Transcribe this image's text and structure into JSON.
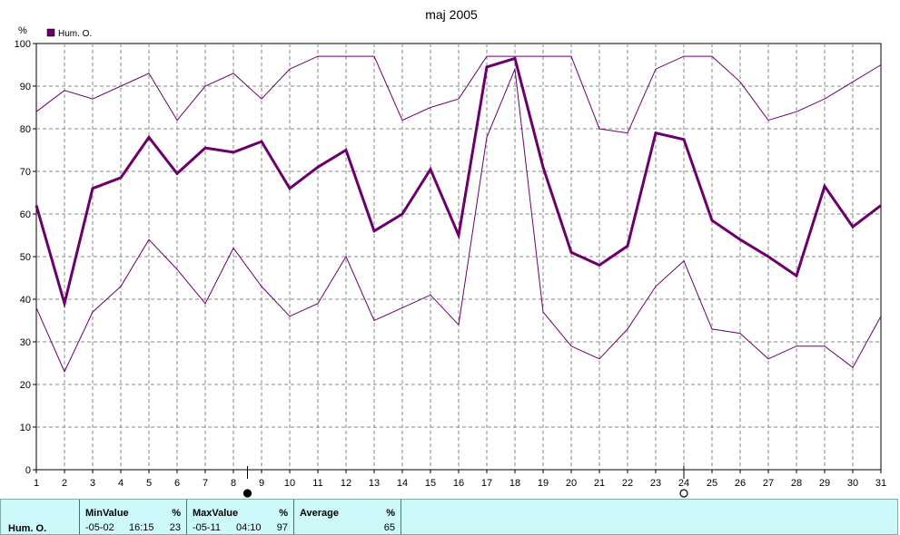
{
  "chart_data": {
    "type": "line",
    "title": "maj 2005",
    "ylabel": "%",
    "ylim": [
      0,
      100
    ],
    "y_ticks": [
      0,
      10,
      20,
      30,
      40,
      50,
      60,
      70,
      80,
      90,
      100
    ],
    "x": [
      1,
      2,
      3,
      4,
      5,
      6,
      7,
      8,
      9,
      10,
      11,
      12,
      13,
      14,
      15,
      16,
      17,
      18,
      19,
      20,
      21,
      22,
      23,
      24,
      25,
      26,
      27,
      28,
      29,
      30,
      31
    ],
    "legend": {
      "label": "Hum. O.",
      "position": "top-left"
    },
    "grid": true,
    "series": [
      {
        "name": "Hum. O.",
        "role": "average",
        "color": "#6a006a",
        "values": [
          62,
          39,
          66,
          68.5,
          78,
          69.5,
          75.5,
          74.5,
          77,
          66,
          71,
          75,
          56,
          60,
          70.5,
          55,
          94.5,
          96.5,
          71,
          51,
          48,
          52.5,
          79,
          77.5,
          58.5,
          54,
          50,
          45.5,
          66.5,
          57,
          62
        ]
      },
      {
        "role": "maximum",
        "color": "#6a006a",
        "values": [
          84,
          89,
          87,
          90,
          93,
          82,
          90,
          93,
          87,
          94,
          97,
          97,
          97,
          82,
          85,
          87,
          97,
          97,
          97,
          97,
          80,
          79,
          94,
          97,
          97,
          91,
          82,
          84,
          87,
          91,
          95
        ]
      },
      {
        "role": "minimum",
        "color": "#6a006a",
        "values": [
          38,
          23,
          37,
          43,
          54,
          47,
          39,
          52,
          43,
          36,
          39,
          50,
          35,
          38,
          41,
          34,
          78,
          94,
          37,
          29,
          26,
          33,
          43,
          49,
          33,
          32,
          26,
          29,
          29,
          24,
          36
        ]
      }
    ],
    "markers": [
      {
        "day": 8.5,
        "type": "filled-circle"
      },
      {
        "day": 24,
        "type": "open-circle"
      }
    ]
  },
  "stats": {
    "row_label": "Hum. O.",
    "min": {
      "header": "MinValue",
      "unit": "%",
      "date": "-05-02",
      "time": "16:15",
      "value": "23"
    },
    "max": {
      "header": "MaxValue",
      "unit": "%",
      "date": "-05-11",
      "time": "04:10",
      "value": "97"
    },
    "avg": {
      "header": "Average",
      "unit": "%",
      "value": "65"
    }
  },
  "colors": {
    "line": "#6a006a",
    "panel": "#ccf9f9",
    "grid": "#888888"
  }
}
